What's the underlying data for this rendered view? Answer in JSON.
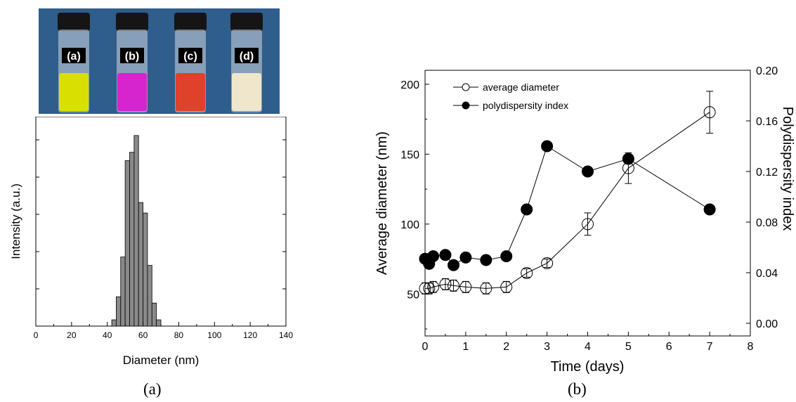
{
  "photo": {
    "background": "#2f5d8c",
    "vials": [
      {
        "label": "(a)",
        "liquid_color": "#d9e000"
      },
      {
        "label": "(b)",
        "liquid_color": "#d624cf"
      },
      {
        "label": "(c)",
        "liquid_color": "#e0412a"
      },
      {
        "label": "(d)",
        "liquid_color": "#efe6cc"
      }
    ]
  },
  "captions": {
    "a": "(a)",
    "b": "(b)"
  },
  "chart_data": [
    {
      "type": "bar",
      "xlabel": "Diameter (nm)",
      "ylabel": "Intensity (a.u.)",
      "xlim": [
        0,
        140
      ],
      "x_ticks": [
        "0",
        "20",
        "40",
        "60",
        "80",
        "100",
        "120",
        "140"
      ],
      "bar_width": 2.5,
      "bar_color": "#8a8a8a",
      "x": [
        43.75,
        46.25,
        48.75,
        51.25,
        53.75,
        56.25,
        58.75,
        61.25,
        63.75,
        66.25,
        68.75
      ],
      "values": [
        3,
        14,
        33,
        79,
        83,
        91,
        59,
        54,
        29,
        11,
        3
      ],
      "ylim": [
        0,
        100
      ]
    },
    {
      "type": "scatter",
      "xlabel": "Time (days)",
      "ylabel": "Average diameter (nm)",
      "y2label": "Polydispersity index",
      "xlim": [
        0,
        8
      ],
      "ylim": [
        20,
        210
      ],
      "y2lim": [
        -0.01,
        0.2
      ],
      "x_ticks": [
        "0",
        "1",
        "2",
        "3",
        "4",
        "5",
        "6",
        "7",
        "8"
      ],
      "y_ticks": [
        "50",
        "100",
        "150",
        "200"
      ],
      "y2_ticks": [
        "0.00",
        "0.04",
        "0.08",
        "0.12",
        "0.16",
        "0.20"
      ],
      "legend_position": "top-left",
      "series": [
        {
          "name": "average diameter",
          "marker": "open-circle",
          "axis": "left",
          "x": [
            0,
            0.1,
            0.2,
            0.5,
            0.7,
            1,
            1.5,
            2,
            2.5,
            3,
            4,
            5,
            7
          ],
          "y": [
            54,
            54,
            55,
            57,
            56,
            55,
            54,
            55,
            65,
            72,
            100,
            140,
            180
          ],
          "error": [
            4,
            4,
            4,
            4,
            4,
            4,
            4,
            4,
            3,
            3,
            8,
            11,
            15
          ]
        },
        {
          "name": "polydispersity index",
          "marker": "filled-circle",
          "axis": "right",
          "x": [
            0,
            0.1,
            0.2,
            0.5,
            0.7,
            1,
            1.5,
            2,
            2.5,
            3,
            4,
            5,
            7
          ],
          "y": [
            0.051,
            0.047,
            0.053,
            0.054,
            0.046,
            0.052,
            0.05,
            0.053,
            0.09,
            0.14,
            0.12,
            0.13,
            0.09
          ]
        }
      ]
    }
  ]
}
